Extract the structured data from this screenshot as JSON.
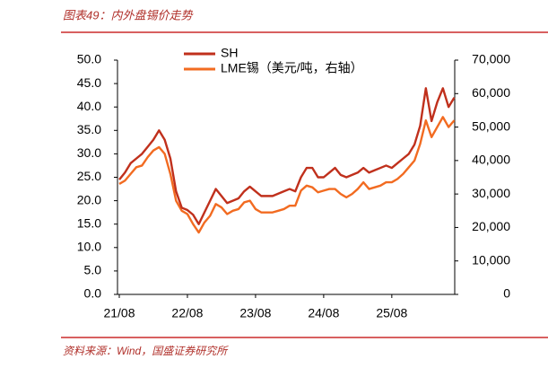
{
  "chart_data": {
    "type": "line",
    "title": "图表49：内外盘锡价走势",
    "source": "资料来源：Wind，国盛证券研究所",
    "categories": [
      "21/08",
      null,
      null,
      null,
      null,
      null,
      null,
      null,
      null,
      null,
      null,
      null,
      "22/08",
      null,
      null,
      null,
      null,
      null,
      null,
      null,
      null,
      null,
      null,
      null,
      "23/08",
      null,
      null,
      null,
      null,
      null,
      null,
      null,
      null,
      null,
      null,
      null,
      "24/08",
      null,
      null,
      null,
      null,
      null,
      null,
      null,
      null,
      null,
      null,
      null,
      "25/08",
      null,
      null,
      null,
      null,
      null,
      null,
      null,
      null,
      null,
      null,
      null
    ],
    "series": [
      {
        "name": "SH",
        "color": "#c0301c",
        "values": [
          24.5,
          26,
          28,
          29,
          30,
          31.5,
          33,
          35,
          33,
          29,
          22,
          18.5,
          18,
          17,
          15,
          17.5,
          20,
          22.5,
          21,
          19.5,
          20,
          20.5,
          22,
          23,
          22,
          21,
          21,
          21,
          21.5,
          22,
          22.5,
          22,
          25,
          27,
          27,
          25,
          25,
          26,
          27,
          25.5,
          25,
          25.5,
          26,
          27,
          26,
          26.5,
          27,
          27.5,
          27,
          28,
          29,
          30,
          32,
          36,
          44,
          37,
          41,
          44,
          40,
          42
        ]
      },
      {
        "name": "LME锡（美元/吨，右轴）",
        "color": "#f26b21",
        "axis": "y2",
        "values": [
          33000,
          34000,
          36000,
          38000,
          38500,
          41000,
          43000,
          44000,
          42000,
          36000,
          28000,
          25000,
          24000,
          21000,
          18500,
          21500,
          23500,
          27000,
          26000,
          24000,
          25000,
          25500,
          27500,
          28000,
          25500,
          24500,
          24500,
          24500,
          25000,
          25500,
          26500,
          26500,
          31000,
          32500,
          32000,
          30500,
          31000,
          31500,
          31500,
          30000,
          29000,
          30000,
          31500,
          33500,
          31500,
          32000,
          32500,
          33500,
          33500,
          34500,
          36000,
          38000,
          40000,
          45000,
          52000,
          47000,
          50000,
          53000,
          50000,
          52000
        ]
      }
    ],
    "ylim": [
      0,
      50
    ],
    "yticks": [
      {
        "value": 0,
        "label": "0.0"
      },
      {
        "value": 5,
        "label": "5.0"
      },
      {
        "value": 10,
        "label": "10.0"
      },
      {
        "value": 15,
        "label": "15.0"
      },
      {
        "value": 20,
        "label": "20.0"
      },
      {
        "value": 25,
        "label": "25.0"
      },
      {
        "value": 30,
        "label": "30.0"
      },
      {
        "value": 35,
        "label": "35.0"
      },
      {
        "value": 40,
        "label": "40.0"
      },
      {
        "value": 45,
        "label": "45.0"
      },
      {
        "value": 50,
        "label": "50.0"
      }
    ],
    "y2lim": [
      0,
      70000
    ],
    "y2ticks": [
      0,
      {
        "value": 10000,
        "label": "10,000"
      },
      {
        "value": 20000,
        "label": "20,000"
      },
      {
        "value": 30000,
        "label": "30,000"
      },
      {
        "value": 40000,
        "label": "40,000"
      },
      {
        "value": 50000,
        "label": "50,000"
      },
      {
        "value": 60000,
        "label": "60,000"
      },
      {
        "value": 70000,
        "label": "70,000"
      }
    ],
    "grid": false
  }
}
